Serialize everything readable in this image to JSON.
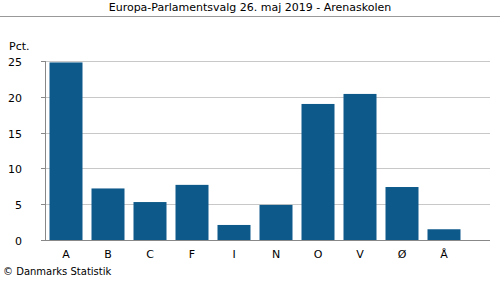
{
  "chart_data": {
    "type": "bar",
    "title": "Europa-Parlamentsvalg 26. maj 2019 - Arenaskolen",
    "y_label": "Pct.",
    "source": "© Danmarks Statistik",
    "categories": [
      "A",
      "B",
      "C",
      "F",
      "I",
      "N",
      "O",
      "V",
      "Ø",
      "Å"
    ],
    "values": [
      24.8,
      7.2,
      5.3,
      7.7,
      2.1,
      4.9,
      19.0,
      20.4,
      7.4,
      1.5
    ],
    "color": "#0d5a8a",
    "ylim": [
      0,
      25
    ],
    "yticks": [
      0,
      5,
      10,
      15,
      20,
      25
    ],
    "grid": true
  }
}
